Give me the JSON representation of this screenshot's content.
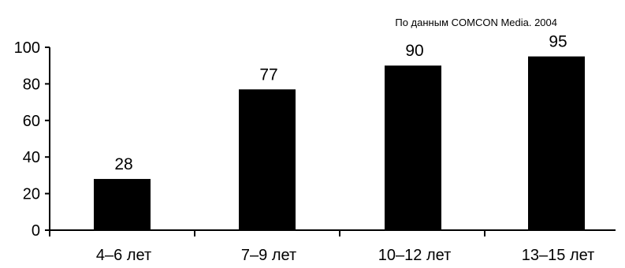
{
  "source_note": "По данным COMCON Media. 2004",
  "chart_data": {
    "type": "bar",
    "categories": [
      "4–6 лет",
      "7–9 лет",
      "10–12 лет",
      "13–15 лет"
    ],
    "values": [
      28,
      77,
      90,
      95
    ],
    "data_labels": [
      "28",
      "77",
      "90",
      "95"
    ],
    "title": "",
    "xlabel": "",
    "ylabel": "",
    "ylim": [
      0,
      100
    ],
    "yticks": [
      0,
      20,
      40,
      60,
      80,
      100
    ],
    "bar_color": "#000000",
    "grid": false,
    "legend": false
  }
}
